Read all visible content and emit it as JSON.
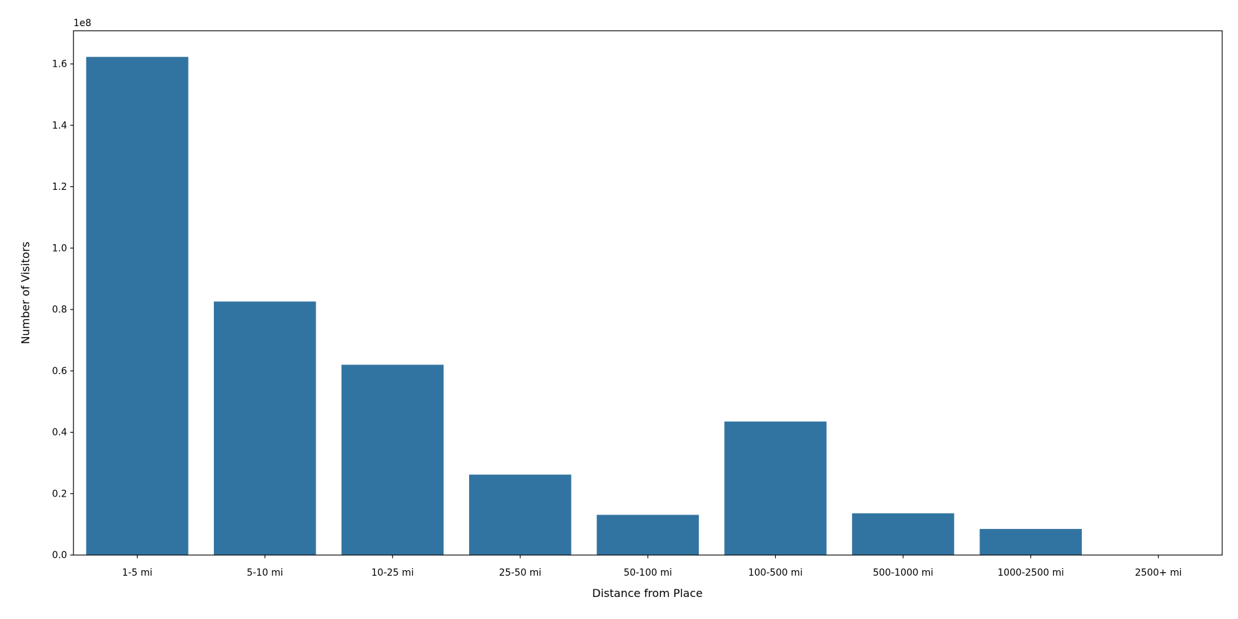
{
  "chart_data": {
    "type": "bar",
    "title": "",
    "xlabel": "Distance from Place",
    "ylabel": "Number of Visitors",
    "y_offset_label": "1e8",
    "categories": [
      "1-5 mi",
      "5-10 mi",
      "10-25 mi",
      "25-50 mi",
      "50-100 mi",
      "100-500 mi",
      "500-1000 mi",
      "1000-2500 mi",
      "2500+ mi"
    ],
    "values": [
      162300000,
      82600000,
      62000000,
      26200000,
      13100000,
      43500000,
      13600000,
      8500000,
      0
    ],
    "ylim": [
      0,
      170800000
    ],
    "yticks": [
      "0.0",
      "0.2",
      "0.4",
      "0.6",
      "0.8",
      "1.0",
      "1.2",
      "1.4",
      "1.6"
    ],
    "ytick_values": [
      0,
      0.2,
      0.4,
      0.6,
      0.8,
      1.0,
      1.2,
      1.4,
      1.6
    ],
    "grid": false,
    "bar_color": "#3274a1"
  }
}
